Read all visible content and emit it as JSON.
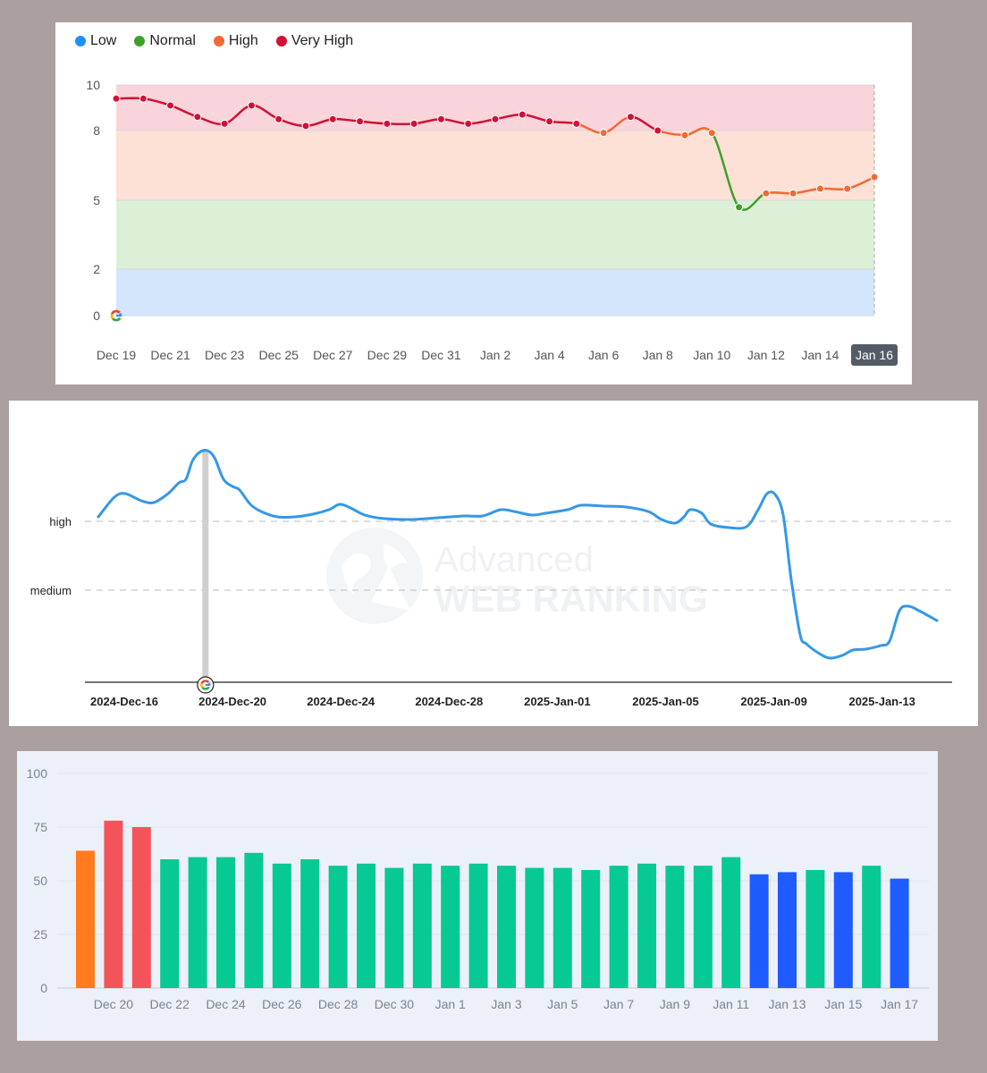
{
  "chart_data": [
    {
      "type": "line",
      "legend": [
        {
          "label": "Low",
          "color": "#1e90ff"
        },
        {
          "label": "Normal",
          "color": "#3ea02a"
        },
        {
          "label": "High",
          "color": "#ef6a34"
        },
        {
          "label": "Very High",
          "color": "#d21036"
        }
      ],
      "y_ticks": [
        "10",
        "8",
        "5",
        "2",
        "0"
      ],
      "bands": [
        {
          "name": "Low",
          "from": 0,
          "to": 2,
          "color": "#d4e6fc"
        },
        {
          "name": "Normal",
          "from": 2,
          "to": 5,
          "color": "#dcf0d8"
        },
        {
          "name": "High",
          "from": 5,
          "to": 8,
          "color": "#fde0d6"
        },
        {
          "name": "Very High",
          "from": 8,
          "to": 10,
          "color": "#f9d4da"
        }
      ],
      "x_ticks": [
        "Dec 19",
        "Dec 21",
        "Dec 23",
        "Dec 25",
        "Dec 27",
        "Dec 29",
        "Dec 31",
        "Jan 2",
        "Jan 4",
        "Jan 6",
        "Jan 8",
        "Jan 10",
        "Jan 12",
        "Jan 14",
        "Jan 16"
      ],
      "highlighted_tick": "Jan 16",
      "marker": {
        "date": "Dec 19",
        "icon": "google-icon"
      },
      "x": [
        "Dec 19",
        "Dec 20",
        "Dec 21",
        "Dec 22",
        "Dec 23",
        "Dec 24",
        "Dec 25",
        "Dec 26",
        "Dec 27",
        "Dec 28",
        "Dec 29",
        "Dec 30",
        "Dec 31",
        "Jan 1",
        "Jan 2",
        "Jan 3",
        "Jan 4",
        "Jan 5",
        "Jan 6",
        "Jan 7",
        "Jan 8",
        "Jan 9",
        "Jan 10",
        "Jan 11",
        "Jan 12",
        "Jan 13",
        "Jan 14",
        "Jan 15",
        "Jan 16"
      ],
      "values": [
        9.4,
        9.4,
        9.1,
        8.6,
        8.3,
        9.1,
        8.5,
        8.2,
        8.5,
        8.4,
        8.3,
        8.3,
        8.5,
        8.3,
        8.5,
        8.7,
        8.4,
        8.3,
        7.9,
        8.6,
        8.0,
        7.8,
        7.9,
        4.7,
        5.3,
        5.3,
        5.5,
        5.5,
        6.0
      ],
      "ylim": [
        0,
        10
      ]
    },
    {
      "type": "line",
      "y_levels": [
        "high",
        "medium"
      ],
      "x_ticks": [
        "2024-Dec-16",
        "2024-Dec-20",
        "2024-Dec-24",
        "2024-Dec-28",
        "2025-Jan-01",
        "2025-Jan-05",
        "2025-Jan-09",
        "2025-Jan-13"
      ],
      "marker": {
        "date": "2024-Dec-19",
        "icon": "google-icon"
      },
      "watermark": {
        "line1": "Advanced",
        "line2": "WEB RANKING"
      },
      "series_color": "#3498e8"
    },
    {
      "type": "bar",
      "y_ticks": [
        "100",
        "75",
        "50",
        "25",
        "0"
      ],
      "ylim": [
        0,
        100
      ],
      "x_ticks": [
        "Dec 20",
        "Dec 22",
        "Dec 24",
        "Dec 26",
        "Dec 28",
        "Dec 30",
        "Jan 1",
        "Jan 3",
        "Jan 5",
        "Jan 7",
        "Jan 9",
        "Jan 11",
        "Jan 13",
        "Jan 15",
        "Jan 17"
      ],
      "categories": [
        "Dec 19",
        "Dec 20",
        "Dec 21",
        "Dec 22",
        "Dec 23",
        "Dec 24",
        "Dec 25",
        "Dec 26",
        "Dec 27",
        "Dec 28",
        "Dec 29",
        "Dec 30",
        "Dec 31",
        "Jan 1",
        "Jan 2",
        "Jan 3",
        "Jan 4",
        "Jan 5",
        "Jan 6",
        "Jan 7",
        "Jan 8",
        "Jan 9",
        "Jan 10",
        "Jan 11",
        "Jan 12",
        "Jan 13",
        "Jan 14",
        "Jan 15",
        "Jan 16",
        "Jan 17"
      ],
      "values": [
        64,
        78,
        75,
        60,
        61,
        61,
        63,
        58,
        60,
        57,
        58,
        56,
        58,
        57,
        58,
        57,
        56,
        56,
        55,
        57,
        58,
        57,
        57,
        61,
        53,
        54,
        55,
        54,
        57,
        51
      ],
      "colors": [
        "#ff7b1d",
        "#f5535a",
        "#f5535a",
        "#07c993",
        "#07c993",
        "#07c993",
        "#07c993",
        "#07c993",
        "#07c993",
        "#07c993",
        "#07c993",
        "#07c993",
        "#07c993",
        "#07c993",
        "#07c993",
        "#07c993",
        "#07c993",
        "#07c993",
        "#07c993",
        "#07c993",
        "#07c993",
        "#07c993",
        "#07c993",
        "#07c993",
        "#1f5cff",
        "#1f5cff",
        "#07c993",
        "#1f5cff",
        "#07c993",
        "#1f5cff"
      ]
    }
  ]
}
